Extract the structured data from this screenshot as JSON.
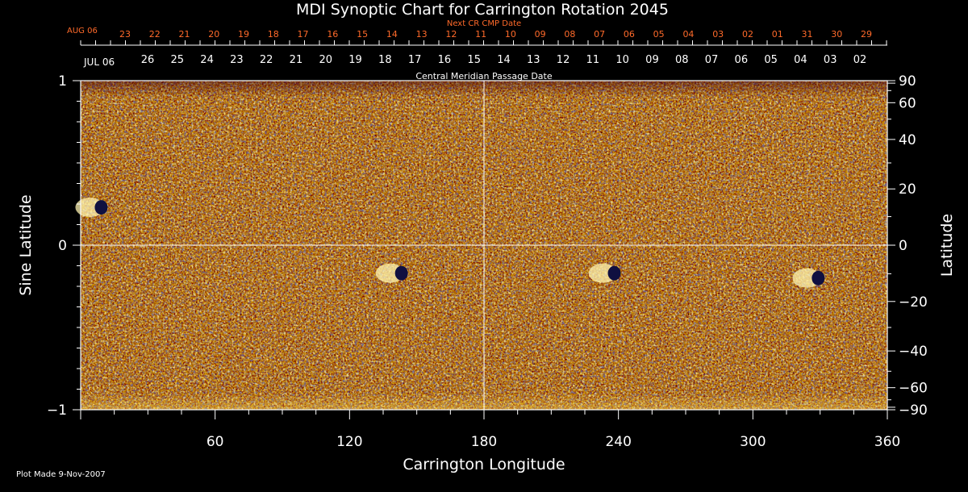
{
  "chart_data": {
    "type": "heatmap",
    "title": "MDI Synoptic Chart for Carrington Rotation 2045",
    "xlabel": "Carrington Longitude",
    "ylabel_left": "Sine Latitude",
    "ylabel_right": "Latitude",
    "xlim": [
      0,
      360
    ],
    "ylim": [
      -1,
      1
    ],
    "x_ticks": [
      60,
      120,
      180,
      240,
      300,
      360
    ],
    "y_ticks_left": [
      {
        "value": 1,
        "label": "1"
      },
      {
        "value": 0,
        "label": "0"
      },
      {
        "value": -1,
        "label": "−1"
      }
    ],
    "y_ticks_right": [
      90,
      60,
      40,
      20,
      0,
      -20,
      -40,
      -60,
      -90
    ],
    "y_ticks_right_labels": [
      "90",
      "60",
      "40",
      "20",
      "0",
      "−20",
      "−40",
      "−60",
      "−90"
    ],
    "cmp_label": "Central Meridian Passage Date",
    "next_cr_label": "Next CR CMP Date",
    "next_cr_month": "AUG 06",
    "next_cr_dates": [
      "23",
      "22",
      "21",
      "20",
      "19",
      "18",
      "17",
      "16",
      "15",
      "14",
      "13",
      "12",
      "11",
      "10",
      "09",
      "08",
      "07",
      "06",
      "05",
      "04",
      "03",
      "02",
      "01",
      "31",
      "30",
      "29"
    ],
    "cmp_month": "JUL 06",
    "cmp_dates": [
      "26",
      "25",
      "24",
      "23",
      "22",
      "21",
      "20",
      "19",
      "18",
      "17",
      "16",
      "15",
      "14",
      "13",
      "12",
      "11",
      "10",
      "09",
      "08",
      "07",
      "06",
      "05",
      "04",
      "03",
      "02"
    ],
    "active_regions": [
      {
        "lon": 7,
        "sinlat": 0.23,
        "polarity": "mixed"
      },
      {
        "lon": 141,
        "sinlat": -0.17,
        "polarity": "mixed"
      },
      {
        "lon": 236,
        "sinlat": -0.17,
        "polarity": "mixed"
      },
      {
        "lon": 327,
        "sinlat": -0.2,
        "polarity": "mixed"
      }
    ],
    "grid": "center crosshair",
    "colors": {
      "background": "#ff5500",
      "positive": "#ffff80",
      "negative": "#202060",
      "secondary_text": "#ff6a2a"
    }
  },
  "footer": {
    "plot_made": "Plot Made  9-Nov-2007"
  }
}
